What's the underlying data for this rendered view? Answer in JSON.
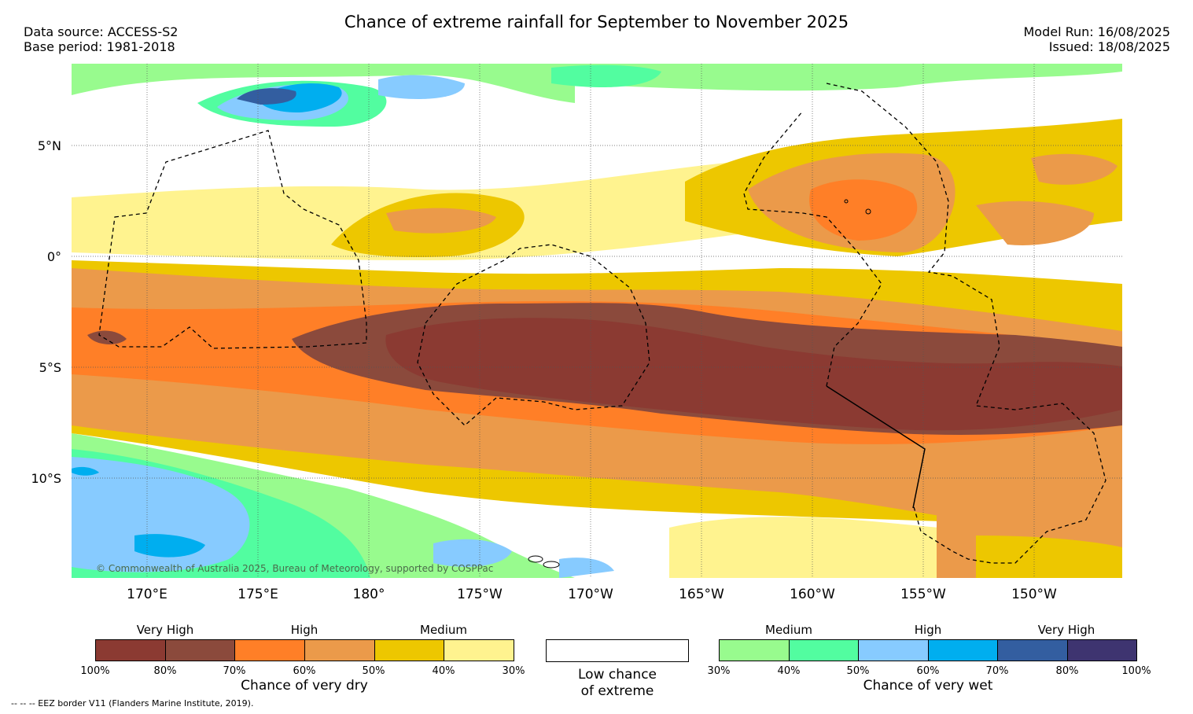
{
  "header": {
    "title": "Chance of extreme rainfall for September to November 2025",
    "data_source": "Data source: ACCESS-S2",
    "base_period": "Base period: 1981-2018",
    "model_run": "Model Run: 16/08/2025",
    "issued": "Issued: 18/08/2025"
  },
  "map": {
    "lat_labels": [
      "5°N",
      "0°",
      "5°S",
      "10°S"
    ],
    "lon_labels": [
      "170°E",
      "175°E",
      "180°",
      "175°W",
      "170°W",
      "165°W",
      "160°W",
      "155°W",
      "150°W"
    ],
    "copyright": "© Commonwealth of Australia 2025, Bureau of Meteorology, supported by COSPPac",
    "dominant_signal": "dry band along equator to 5°S"
  },
  "legend_dry": {
    "groups": [
      "Very High",
      "High",
      "Medium"
    ],
    "colors": [
      "#8b3a32",
      "#8b4a3c",
      "#ff7f27",
      "#eb9a4a",
      "#edc700",
      "#fff38f"
    ],
    "ticks": [
      "100%",
      "80%",
      "70%",
      "60%",
      "50%",
      "40%",
      "30%"
    ],
    "caption": "Chance of very dry"
  },
  "legend_low": {
    "caption_line1": "Low chance",
    "caption_line2": "of extreme"
  },
  "legend_wet": {
    "groups": [
      "Medium",
      "High",
      "Very High"
    ],
    "colors": [
      "#98fb8e",
      "#52fda0",
      "#87cbff",
      "#00aeef",
      "#335ea0",
      "#3e3470"
    ],
    "ticks": [
      "30%",
      "40%",
      "50%",
      "60%",
      "70%",
      "80%",
      "100%"
    ],
    "caption": "Chance of very wet"
  },
  "footnote": "--  --  -- EEZ border V11 (Flanders Marine Institute, 2019)."
}
